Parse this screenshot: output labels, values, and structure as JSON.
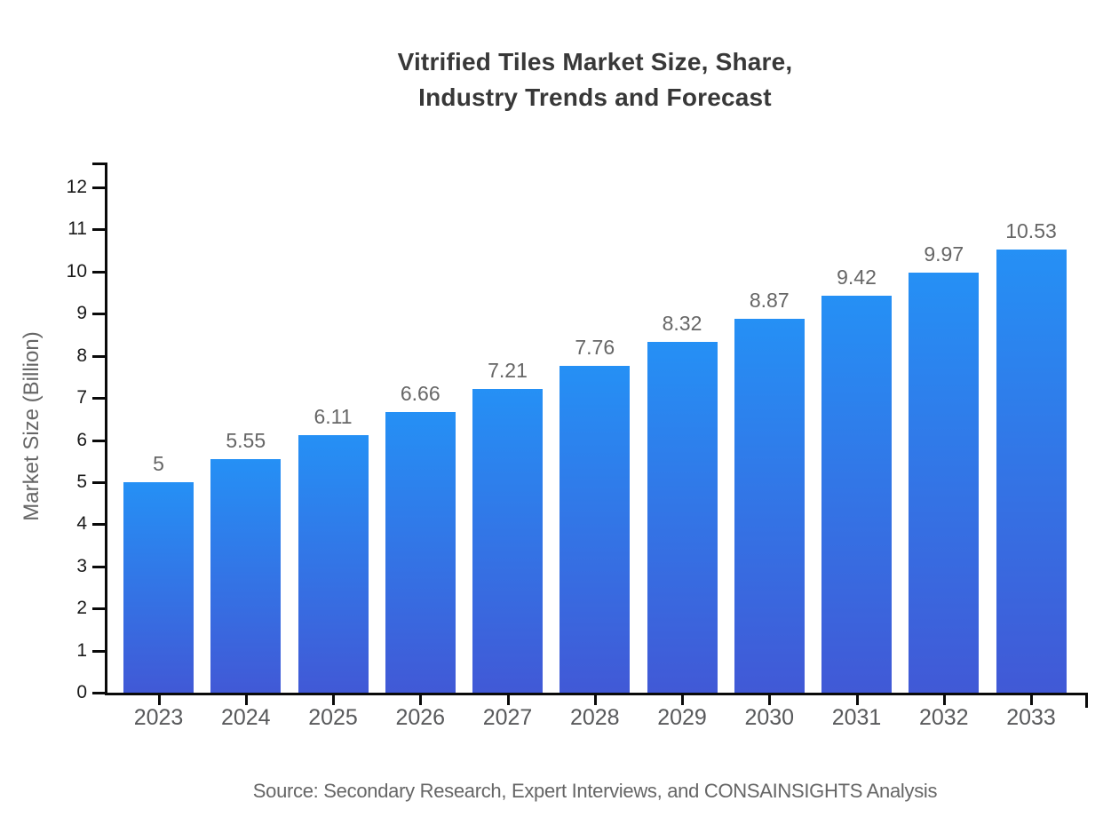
{
  "title": {
    "line1": "Vitrified Tiles Market Size, Share,",
    "line2": "Industry Trends and Forecast"
  },
  "source_note": "Source: Secondary Research, Expert Interviews, and CONSAINSIGHTS Analysis",
  "chart_data": {
    "type": "bar",
    "title": "Vitrified Tiles Market Size, Share, Industry Trends and Forecast",
    "categories": [
      "2023",
      "2024",
      "2025",
      "2026",
      "2027",
      "2028",
      "2029",
      "2030",
      "2031",
      "2032",
      "2033"
    ],
    "values": [
      5,
      5.55,
      6.11,
      6.66,
      7.21,
      7.76,
      8.32,
      8.87,
      9.42,
      9.97,
      10.53
    ],
    "value_labels": [
      "5",
      "5.55",
      "6.11",
      "6.66",
      "7.21",
      "7.76",
      "8.32",
      "8.87",
      "9.42",
      "9.97",
      "10.53"
    ],
    "xlabel": "",
    "ylabel": "Market Size (Billion)",
    "ylim": [
      0,
      12
    ],
    "yticks": [
      0,
      1,
      2,
      3,
      4,
      5,
      6,
      7,
      8,
      9,
      10,
      11,
      12
    ],
    "grid": false,
    "legend_position": "none",
    "colors": {
      "bar_gradient_top": "#2590f5",
      "bar_gradient_bottom": "#4159d6",
      "axis": "#0a0a0a",
      "y_tick_label": "#1a1a1a",
      "x_tick_label": "#58595b",
      "value_label": "#666666",
      "title": "#383838",
      "source": "#666666"
    }
  }
}
